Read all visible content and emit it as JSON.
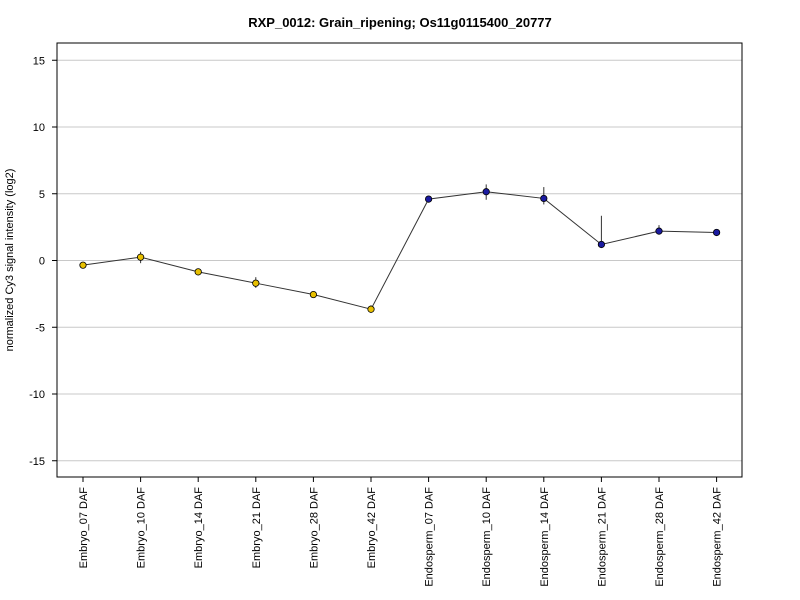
{
  "chart_data": {
    "type": "line",
    "title": "RXP_0012: Grain_ripening; Os11g0115400_20777",
    "ylabel": "normalized Cy3 signal intensity (log2)",
    "xlabel": "",
    "ylim": [
      -16,
      16
    ],
    "yticks": [
      15,
      10,
      5,
      0,
      -5,
      -10,
      -15
    ],
    "grid": "horizontal",
    "categories": [
      "Embryo_07 DAF",
      "Embryo_10 DAF",
      "Embryo_14 DAF",
      "Embryo_21 DAF",
      "Embryo_28 DAF",
      "Embryo_42 DAF",
      "Endosperm_07 DAF",
      "Endosperm_10 DAF",
      "Endosperm_14 DAF",
      "Endosperm_21 DAF",
      "Endosperm_28 DAF",
      "Endosperm_42 DAF"
    ],
    "series": [
      {
        "values": [
          -0.35,
          0.25,
          -0.85,
          -1.7,
          -2.55,
          -3.65,
          4.6,
          5.15,
          4.65,
          1.2,
          2.2,
          2.1
        ],
        "error_low": [
          -0.35,
          -0.2,
          -0.85,
          -2.05,
          -2.75,
          -3.9,
          4.6,
          4.55,
          4.2,
          1.2,
          1.95,
          1.95
        ],
        "error_high": [
          -0.35,
          0.65,
          -0.85,
          -1.25,
          -2.3,
          -3.35,
          4.6,
          5.7,
          5.5,
          3.35,
          2.65,
          2.25
        ],
        "point_colors": [
          "#e8c000",
          "#e8c000",
          "#e8c000",
          "#e8c000",
          "#e8c000",
          "#e8c000",
          "#1a1aa0",
          "#1a1aa0",
          "#1a1aa0",
          "#1a1aa0",
          "#1a1aa0",
          "#1a1aa0"
        ]
      }
    ],
    "colors": {
      "embryo": "#e8c000",
      "endosperm": "#1a1aa0",
      "line": "#333333",
      "grid": "#c8c8c8"
    }
  }
}
